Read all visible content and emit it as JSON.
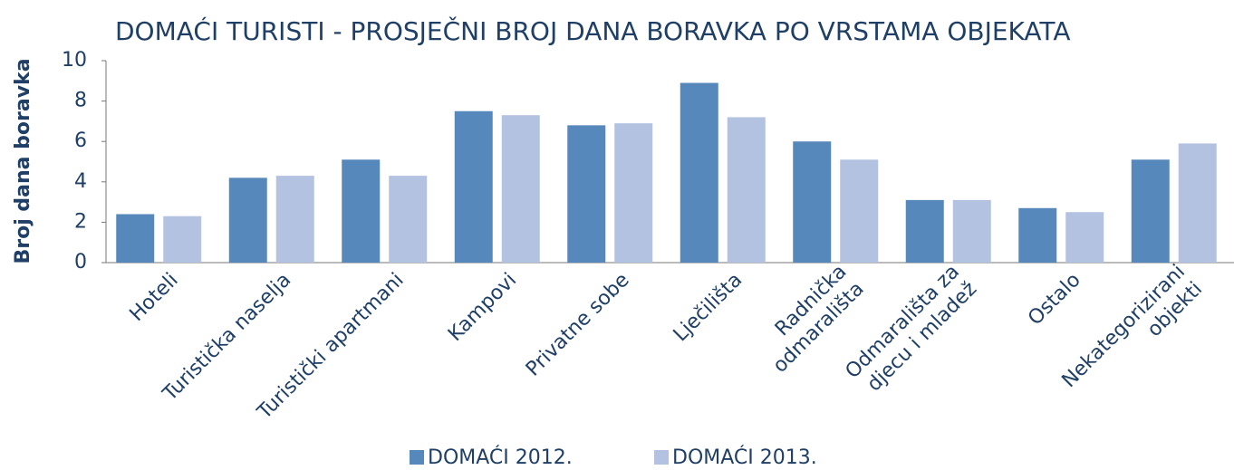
{
  "chart_data": {
    "type": "bar",
    "title": "DOMAĆI TURISTI - PROSJEČNI BROJ DANA BORAVKA PO VRSTAMA OBJEKATA",
    "y_label": "Broj dana boravka",
    "categories": [
      "Hoteli",
      "Turistička naselja",
      "Turistički apartmani",
      "Kampovi",
      "Privatne sobe",
      "Lječilišta",
      "Radnička\nodmarališta",
      "Odmarališta za\ndjecu i mladež",
      "Ostalo",
      "Nekategorizirani\nobjekti"
    ],
    "series": [
      {
        "name": "DOMAĆI 2012.",
        "color": "#5788bb",
        "values": [
          2.4,
          4.2,
          5.1,
          7.5,
          6.8,
          8.9,
          6.0,
          3.1,
          2.7,
          5.1
        ]
      },
      {
        "name": "DOMAĆI 2013.",
        "color": "#b3c2e0",
        "values": [
          2.3,
          4.3,
          4.3,
          7.3,
          6.9,
          7.2,
          5.1,
          3.1,
          2.5,
          5.9
        ]
      }
    ],
    "ylim": [
      0,
      10
    ],
    "yticks": [
      0,
      2,
      4,
      6,
      8,
      10
    ],
    "legend": "bottom"
  }
}
